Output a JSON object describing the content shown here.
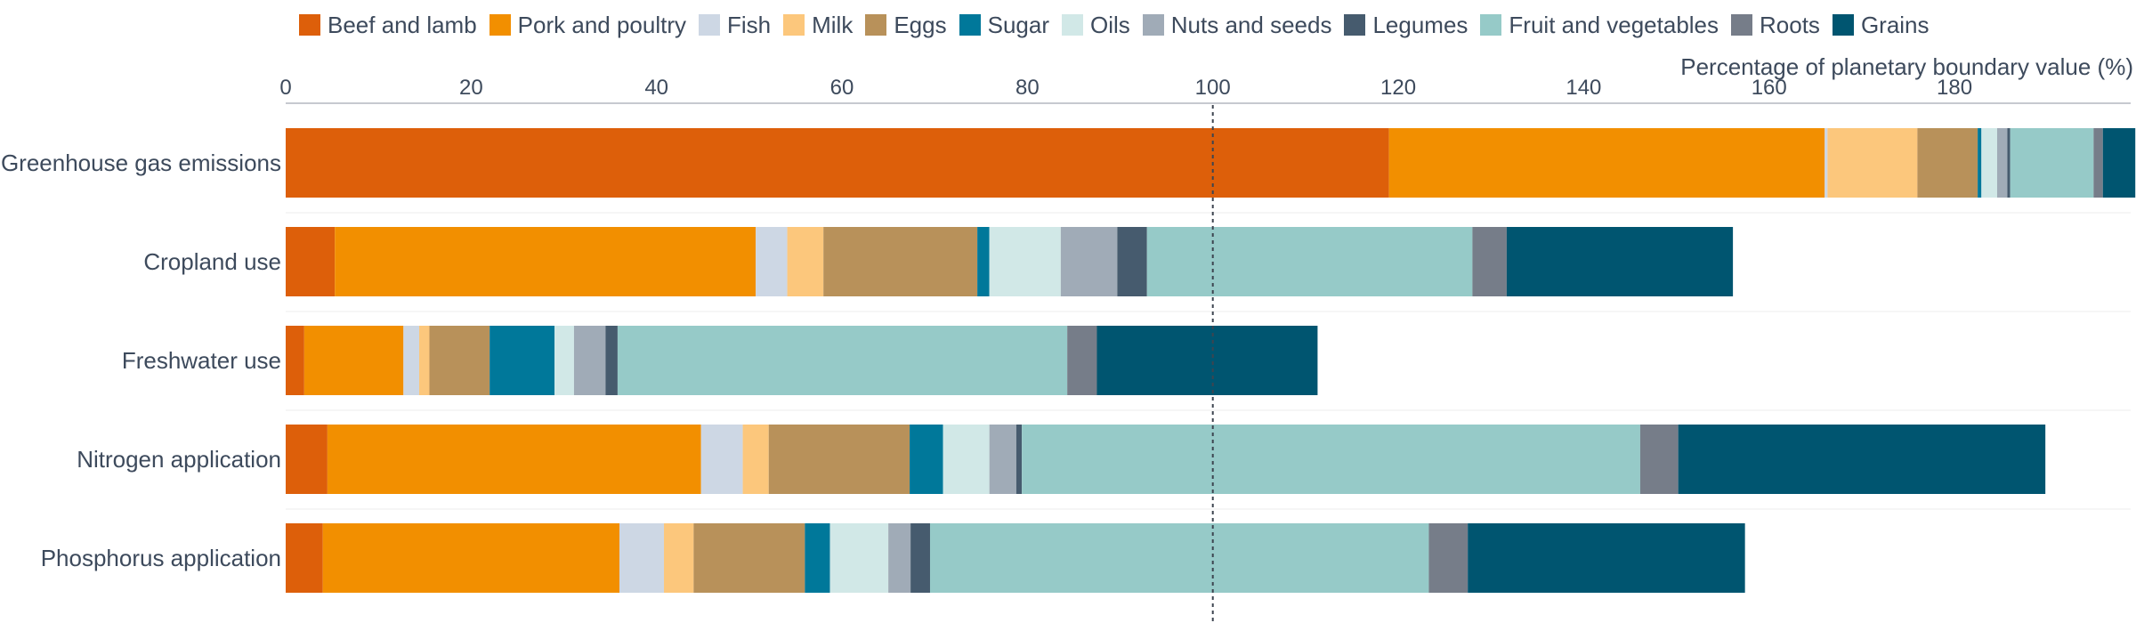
{
  "chart_data": {
    "type": "bar",
    "orientation": "horizontal",
    "stacked": true,
    "xlabel": "Percentage of planetary boundary value (%)",
    "xlim": [
      0,
      199
    ],
    "ticks": [
      0,
      20,
      40,
      60,
      80,
      100,
      120,
      140,
      160,
      180
    ],
    "reference_line": 100,
    "legend_position": "top",
    "categories": [
      "Greenhouse gas emissions",
      "Cropland use",
      "Freshwater use",
      "Nitrogen application",
      "Phosphorus application"
    ],
    "series": [
      {
        "name": "Beef and lamb",
        "color": "#dd5f0a",
        "values": [
          119,
          5.3,
          2,
          4.5,
          4
        ]
      },
      {
        "name": "Pork and poultry",
        "color": "#f28f00",
        "values": [
          47,
          45.4,
          10.7,
          40.3,
          32
        ]
      },
      {
        "name": "Fish",
        "color": "#cdd7e4",
        "values": [
          0.3,
          3.4,
          1.7,
          4.5,
          4.8
        ]
      },
      {
        "name": "Milk",
        "color": "#fcc77c",
        "values": [
          9.7,
          3.9,
          1.1,
          2.8,
          3.2
        ]
      },
      {
        "name": "Eggs",
        "color": "#b8915a",
        "values": [
          6.5,
          16.6,
          6.5,
          15.2,
          12
        ]
      },
      {
        "name": "Sugar",
        "color": "#00789a",
        "values": [
          0.4,
          1.3,
          7,
          3.6,
          2.7
        ]
      },
      {
        "name": "Oils",
        "color": "#d1e8e7",
        "values": [
          1.7,
          7.7,
          2.1,
          5,
          6.3
        ]
      },
      {
        "name": "Nuts and seeds",
        "color": "#a0abb7",
        "values": [
          1.1,
          6.1,
          3.4,
          2.9,
          2.4
        ]
      },
      {
        "name": "Legumes",
        "color": "#465b6e",
        "values": [
          0.3,
          3.2,
          1.3,
          0.6,
          2.1
        ]
      },
      {
        "name": "Fruit and vegetables",
        "color": "#96cac8",
        "values": [
          9,
          35.1,
          48.5,
          66.7,
          53.8
        ]
      },
      {
        "name": "Roots",
        "color": "#767d89",
        "values": [
          1,
          3.7,
          3.2,
          4.1,
          4.2
        ]
      },
      {
        "name": "Grains",
        "color": "#005570",
        "values": [
          3.5,
          24.4,
          23.8,
          39.6,
          29.9
        ]
      }
    ]
  }
}
